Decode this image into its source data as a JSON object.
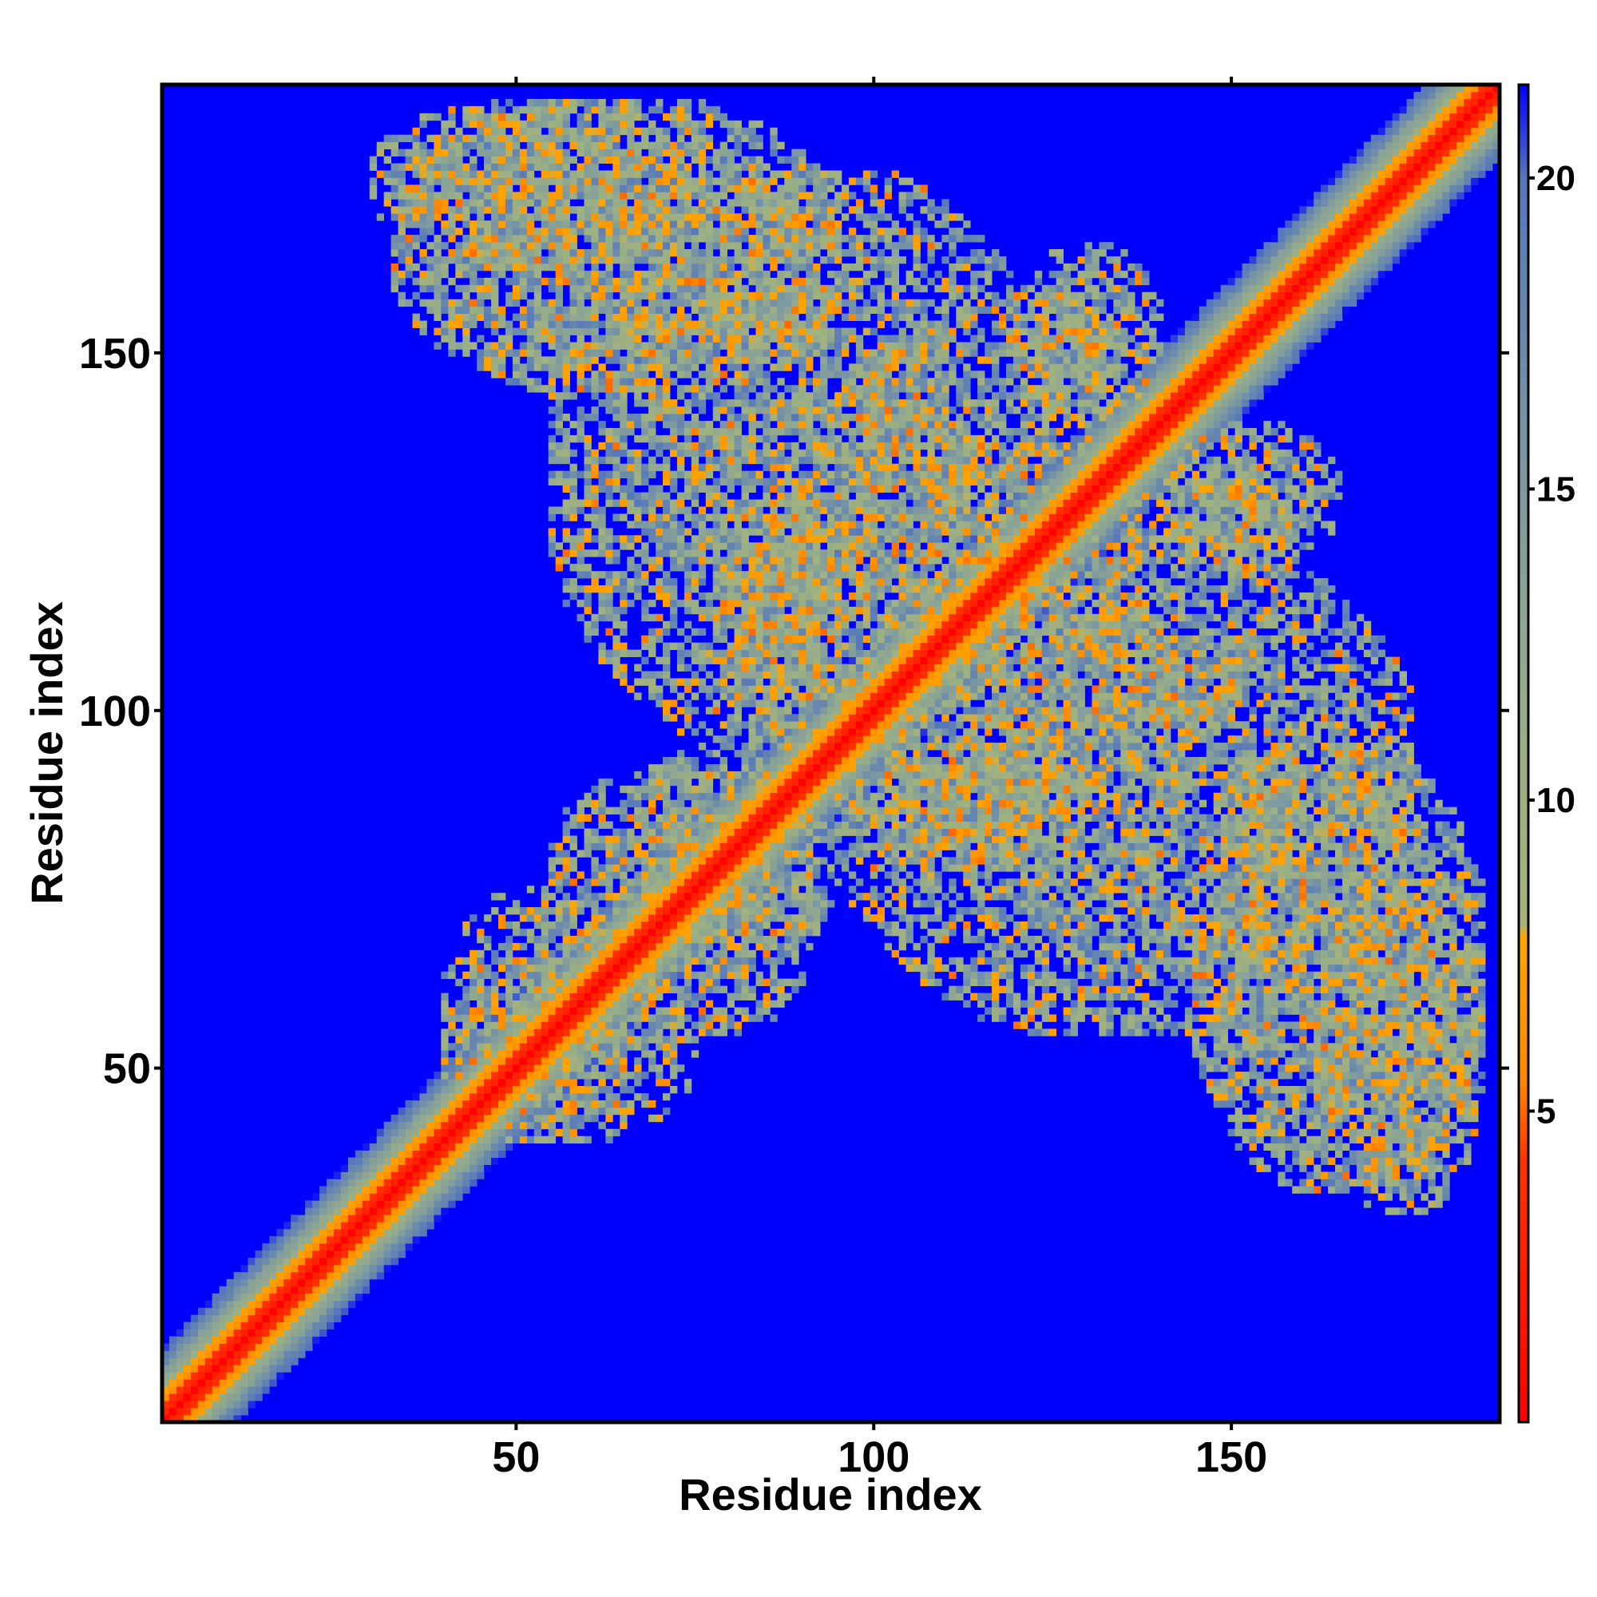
{
  "chart_data": {
    "type": "heatmap",
    "title": "",
    "xlabel": "Residue index",
    "ylabel": "Residue index",
    "xlim": [
      1,
      187
    ],
    "ylim": [
      1,
      187
    ],
    "x_ticks": [
      50,
      100,
      150
    ],
    "y_ticks": [
      50,
      100,
      150
    ],
    "x_tick_labels": [
      "50",
      "100",
      "150"
    ],
    "y_tick_labels": [
      "50",
      "100",
      "150"
    ],
    "colorbar": {
      "range": [
        0,
        21.5
      ],
      "ticks": [
        5,
        10,
        15,
        20
      ],
      "tick_labels": [
        "5",
        "10",
        "15",
        "20"
      ],
      "stops": [
        {
          "value": 0,
          "color": "#ff0000"
        },
        {
          "value": 4.2,
          "color": "#ff3300"
        },
        {
          "value": 5.5,
          "color": "#ff8800"
        },
        {
          "value": 7.8,
          "color": "#ffa500"
        },
        {
          "value": 8.0,
          "color": "#a7b37a"
        },
        {
          "value": 11.0,
          "color": "#9aaf86"
        },
        {
          "value": 15.0,
          "color": "#7e9aa0"
        },
        {
          "value": 20.0,
          "color": "#5577bb"
        },
        {
          "value": 21.5,
          "color": "#0000ff"
        }
      ]
    },
    "background_value": 21.5,
    "contact_regions": [
      {
        "x": [
          55,
          125
        ],
        "y": [
          95,
          175
        ],
        "strength": 0.55
      },
      {
        "x": [
          30,
          75
        ],
        "y": [
          163,
          185
        ],
        "strength": 0.6
      },
      {
        "x": [
          78,
          95
        ],
        "y": [
          148,
          160
        ],
        "strength": 0.5
      },
      {
        "x": [
          97,
          110
        ],
        "y": [
          134,
          152
        ],
        "strength": 0.45
      },
      {
        "x": [
          120,
          140
        ],
        "y": [
          140,
          165
        ],
        "strength": 0.5
      },
      {
        "x": [
          135,
          160
        ],
        "y": [
          120,
          135
        ],
        "strength": 0.45
      },
      {
        "x": [
          55,
          95
        ],
        "y": [
          65,
          92
        ],
        "strength": 0.5
      },
      {
        "x": [
          40,
          68
        ],
        "y": [
          40,
          75
        ],
        "strength": 0.45
      },
      {
        "x": [
          96,
          130
        ],
        "y": [
          78,
          95
        ],
        "strength": 0.5
      },
      {
        "x": [
          118,
          142
        ],
        "y": [
          95,
          122
        ],
        "strength": 0.5
      },
      {
        "x": [
          145,
          185
        ],
        "y": [
          33,
          95
        ],
        "strength": 0.6
      },
      {
        "x": [
          80,
          100
        ],
        "y": [
          110,
          130
        ],
        "strength": 0.45
      }
    ]
  }
}
